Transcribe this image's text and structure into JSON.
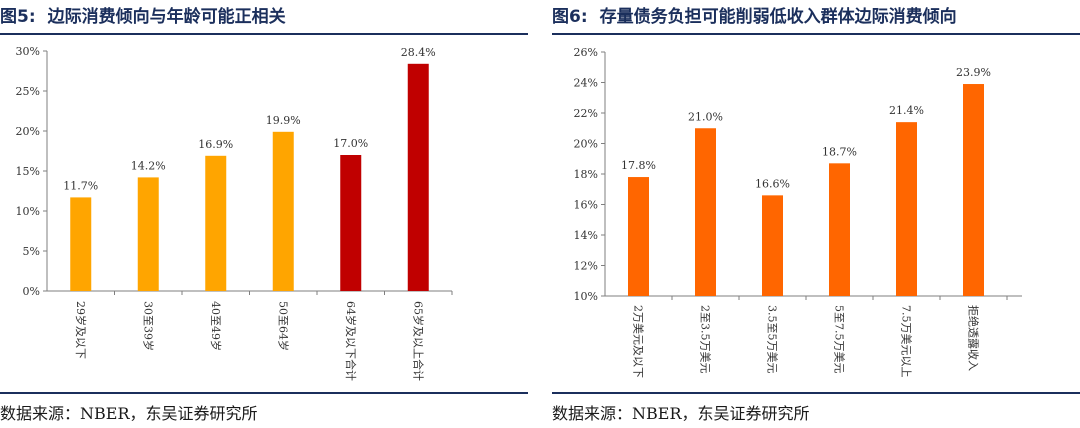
{
  "figures": [
    {
      "number": "图5:",
      "title": "边际消费倾向与年龄可能正相关",
      "source": "数据来源：NBER，东吴证券研究所"
    },
    {
      "number": "图6:",
      "title": "存量债务负担可能削弱低收入群体边际消费倾向",
      "source": "数据来源：NBER，东吴证券研究所"
    }
  ],
  "chart_data": [
    {
      "type": "bar",
      "title": "边际消费倾向与年龄可能正相关",
      "categories": [
        "29岁及以下",
        "30至39岁",
        "40至49岁",
        "50至64岁",
        "64岁及以下合计",
        "65岁及以上合计"
      ],
      "values": [
        11.7,
        14.2,
        16.9,
        19.9,
        17.0,
        28.4
      ],
      "value_labels": [
        "11.7%",
        "14.2%",
        "16.9%",
        "19.9%",
        "17.0%",
        "28.4%"
      ],
      "bar_colors": [
        "#FFA500",
        "#FFA500",
        "#FFA500",
        "#FFA500",
        "#C00000",
        "#C00000"
      ],
      "ylim": [
        0,
        30
      ],
      "yticks": [
        "0%",
        "5%",
        "10%",
        "15%",
        "20%",
        "25%",
        "30%"
      ],
      "ytick_values": [
        0,
        5,
        10,
        15,
        20,
        25,
        30
      ],
      "xlabel": "",
      "ylabel": "",
      "grid": false,
      "legend": "none"
    },
    {
      "type": "bar",
      "title": "存量债务负担可能削弱低收入群体边际消费倾向",
      "categories": [
        "2万美元及以下",
        "2至3.5万美元",
        "3.5至5万美元",
        "5至7.5万美元",
        "7.5万美元以上",
        "拒绝透露收入"
      ],
      "values": [
        17.8,
        21.0,
        16.6,
        18.7,
        21.4,
        23.9
      ],
      "value_labels": [
        "17.8%",
        "21.0%",
        "16.6%",
        "18.7%",
        "21.4%",
        "23.9%"
      ],
      "bar_colors": [
        "#FF6600",
        "#FF6600",
        "#FF6600",
        "#FF6600",
        "#FF6600",
        "#FF6600"
      ],
      "ylim": [
        10,
        26
      ],
      "yticks": [
        "10%",
        "12%",
        "14%",
        "16%",
        "18%",
        "20%",
        "22%",
        "24%",
        "26%"
      ],
      "ytick_values": [
        10,
        12,
        14,
        16,
        18,
        20,
        22,
        24,
        26
      ],
      "xlabel": "",
      "ylabel": "",
      "grid": false,
      "legend": "none"
    }
  ]
}
